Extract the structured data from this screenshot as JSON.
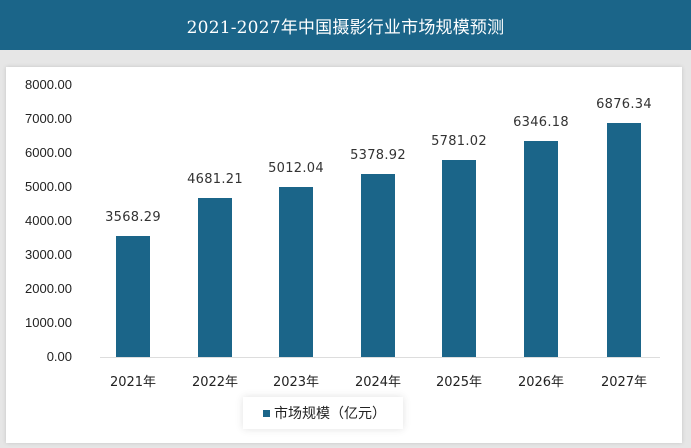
{
  "header": {
    "title": "2021-2027年中国摄影行业市场规模预测"
  },
  "chart_data": {
    "type": "bar",
    "title": "2021-2027年中国摄影行业市场规模预测",
    "categories": [
      "2021年",
      "2022年",
      "2023年",
      "2024年",
      "2025年",
      "2026年",
      "2027年"
    ],
    "series": [
      {
        "name": "市场规模（亿元）",
        "values": [
          3568.29,
          4681.21,
          5012.04,
          5378.92,
          5781.02,
          6346.18,
          6876.34
        ],
        "color": "#1b6589"
      }
    ],
    "value_labels": [
      "3568.29",
      "4681.21",
      "5012.04",
      "5378.92",
      "5781.02",
      "6346.18",
      "6876.34"
    ],
    "xlabel": "",
    "ylabel": "",
    "ylim": [
      0,
      8000
    ],
    "yticks": [
      "8000.00",
      "7000.00",
      "6000.00",
      "5000.00",
      "4000.00",
      "3000.00",
      "2000.00",
      "1000.00",
      "0.00"
    ],
    "grid": false,
    "legend_position": "bottom"
  },
  "legend": {
    "label": "市场规模（亿元）"
  }
}
